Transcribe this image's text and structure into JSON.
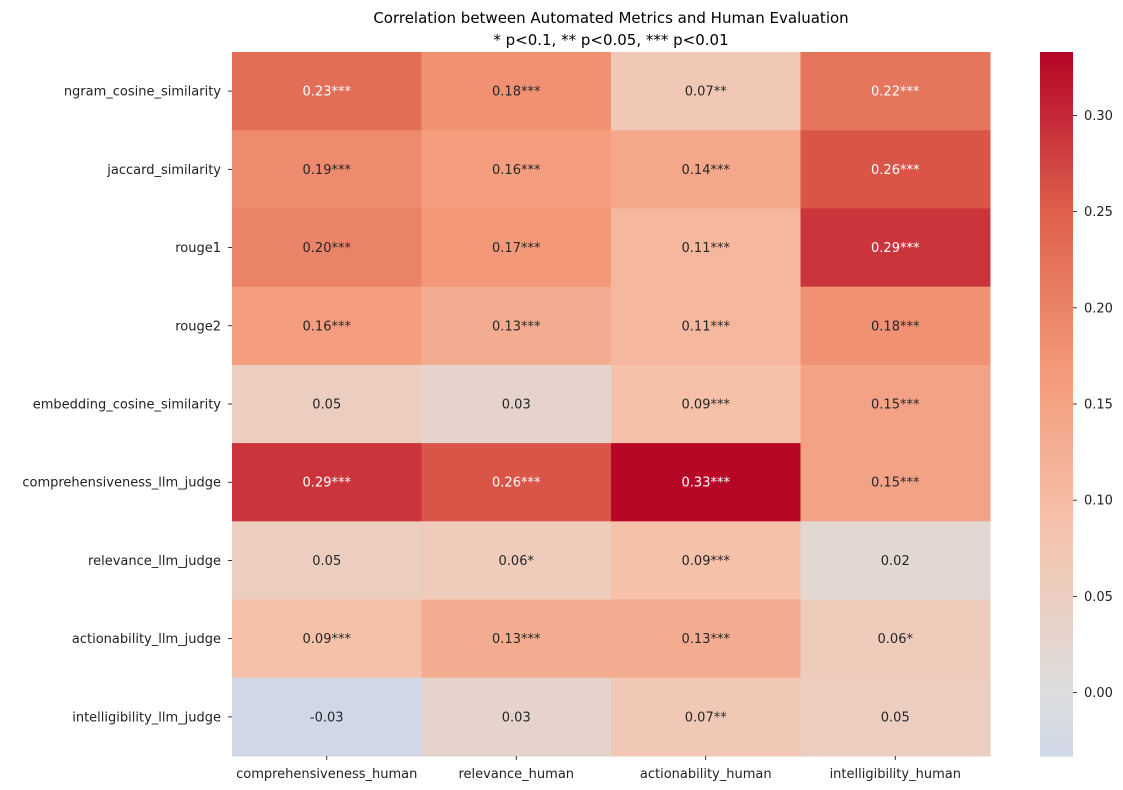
{
  "chart_data": {
    "type": "heatmap",
    "title": "Correlation between Automated Metrics and Human Evaluation",
    "subtitle": "* p<0.1, ** p<0.05, *** p<0.01",
    "xlabel": "",
    "ylabel": "",
    "columns": [
      "comprehensiveness_human",
      "relevance_human",
      "actionability_human",
      "intelligibility_human"
    ],
    "rows": [
      "ngram_cosine_similarity",
      "jaccard_similarity",
      "rouge1",
      "rouge2",
      "embedding_cosine_similarity",
      "comprehensiveness_llm_judge",
      "relevance_llm_judge",
      "actionability_llm_judge",
      "intelligibility_llm_judge"
    ],
    "values": [
      [
        0.23,
        0.18,
        0.07,
        0.22
      ],
      [
        0.19,
        0.16,
        0.14,
        0.26
      ],
      [
        0.2,
        0.17,
        0.11,
        0.29
      ],
      [
        0.16,
        0.13,
        0.11,
        0.18
      ],
      [
        0.05,
        0.03,
        0.09,
        0.15
      ],
      [
        0.29,
        0.26,
        0.33,
        0.15
      ],
      [
        0.05,
        0.06,
        0.09,
        0.02
      ],
      [
        0.09,
        0.13,
        0.13,
        0.06
      ],
      [
        -0.03,
        0.03,
        0.07,
        0.05
      ]
    ],
    "annotations": [
      [
        "0.23***",
        "0.18***",
        "0.07**",
        "0.22***"
      ],
      [
        "0.19***",
        "0.16***",
        "0.14***",
        "0.26***"
      ],
      [
        "0.20***",
        "0.17***",
        "0.11***",
        "0.29***"
      ],
      [
        "0.16***",
        "0.13***",
        "0.11***",
        "0.18***"
      ],
      [
        "0.05",
        "0.03",
        "0.09***",
        "0.15***"
      ],
      [
        "0.29***",
        "0.26***",
        "0.33***",
        "0.15***"
      ],
      [
        "0.05",
        "0.06*",
        "0.09***",
        "0.02"
      ],
      [
        "0.09***",
        "0.13***",
        "0.13***",
        "0.06*"
      ],
      [
        "-0.03",
        "0.03",
        "0.07**",
        "0.05"
      ]
    ],
    "colormap": "coolwarm",
    "center": 0,
    "vmin": -0.033,
    "vmax": 0.333,
    "colorbar_ticks": [
      0.0,
      0.05,
      0.1,
      0.15,
      0.2,
      0.25,
      0.3
    ],
    "colorbar_tick_labels": [
      "0.00",
      "0.05",
      "0.10",
      "0.15",
      "0.20",
      "0.25",
      "0.30"
    ],
    "colors": {
      "cold": "#3b4cc0",
      "neutral": "#dddddd",
      "hot": "#b40426",
      "dark_text": "#262626",
      "light_text": "#ffffff"
    }
  }
}
